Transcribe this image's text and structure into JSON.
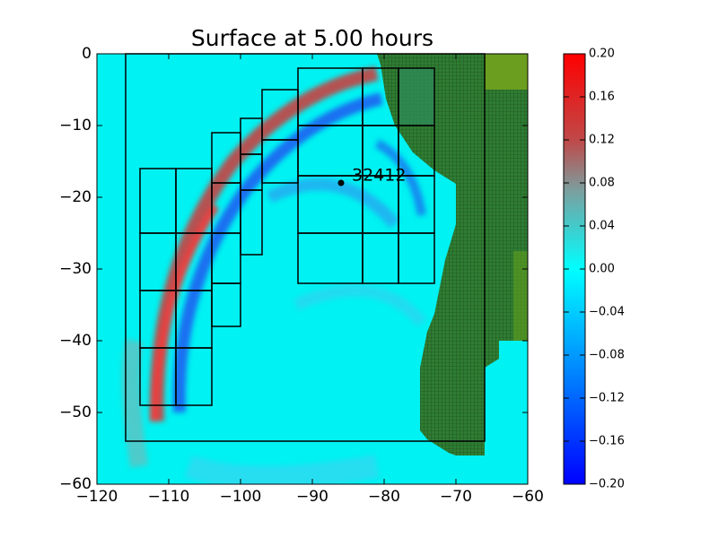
{
  "chart_data": {
    "type": "field",
    "title": "Surface at 5.00 hours",
    "xlim": [
      -120,
      -60
    ],
    "ylim": [
      -60,
      0
    ],
    "xticks": [
      {
        "value": -120,
        "label": "−120"
      },
      {
        "value": -110,
        "label": "−110"
      },
      {
        "value": -100,
        "label": "−100"
      },
      {
        "value": -90,
        "label": "−90"
      },
      {
        "value": -80,
        "label": "−80"
      },
      {
        "value": -70,
        "label": "−70"
      },
      {
        "value": -60,
        "label": "−60"
      }
    ],
    "yticks": [
      0,
      {
        "value": -10,
        "label": "−10"
      },
      {
        "value": -20,
        "label": "−20"
      },
      {
        "value": -30,
        "label": "−30"
      },
      {
        "value": -40,
        "label": "−40"
      },
      {
        "value": -50,
        "label": "−50"
      },
      {
        "value": -60,
        "label": "−60"
      }
    ],
    "clim": [
      -0.2,
      0.2
    ],
    "cticks": [
      {
        "value": 0.2,
        "label": "0.20"
      },
      {
        "value": 0.16,
        "label": "0.16"
      },
      {
        "value": 0.12,
        "label": "0.12"
      },
      {
        "value": 0.08,
        "label": "0.08"
      },
      {
        "value": 0.04,
        "label": "0.04"
      },
      {
        "value": 0.0,
        "label": "0.00"
      },
      {
        "value": -0.04,
        "label": "−0.04"
      },
      {
        "value": -0.08,
        "label": "−0.08"
      },
      {
        "value": -0.12,
        "label": "−0.12"
      },
      {
        "value": -0.16,
        "label": "−0.16"
      },
      {
        "value": -0.2,
        "label": "−0.20"
      }
    ],
    "gauge": {
      "label": "32412",
      "x": -86,
      "y": -18
    },
    "patches": [
      {
        "x": [
          -116,
          -66
        ],
        "y": [
          -54,
          0
        ]
      },
      {
        "x": [
          -114,
          -109
        ],
        "y": [
          -25,
          -16
        ]
      },
      {
        "x": [
          -109,
          -104
        ],
        "y": [
          -25,
          -16
        ]
      },
      {
        "x": [
          -114,
          -109
        ],
        "y": [
          -33,
          -25
        ]
      },
      {
        "x": [
          -109,
          -104
        ],
        "y": [
          -33,
          -25
        ]
      },
      {
        "x": [
          -114,
          -109
        ],
        "y": [
          -41,
          -33
        ]
      },
      {
        "x": [
          -109,
          -104
        ],
        "y": [
          -41,
          -33
        ]
      },
      {
        "x": [
          -114,
          -109
        ],
        "y": [
          -49,
          -41
        ]
      },
      {
        "x": [
          -109,
          -104
        ],
        "y": [
          -49,
          -41
        ]
      },
      {
        "x": [
          -104,
          -100
        ],
        "y": [
          -18,
          -11
        ]
      },
      {
        "x": [
          -104,
          -100
        ],
        "y": [
          -25,
          -18
        ]
      },
      {
        "x": [
          -104,
          -100
        ],
        "y": [
          -32,
          -25
        ]
      },
      {
        "x": [
          -104,
          -100
        ],
        "y": [
          -38,
          -32
        ]
      },
      {
        "x": [
          -100,
          -97
        ],
        "y": [
          -14,
          -9
        ]
      },
      {
        "x": [
          -100,
          -97
        ],
        "y": [
          -19,
          -14
        ]
      },
      {
        "x": [
          -100,
          -97
        ],
        "y": [
          -28,
          -19
        ]
      },
      {
        "x": [
          -97,
          -92
        ],
        "y": [
          -12,
          -5
        ]
      },
      {
        "x": [
          -97,
          -92
        ],
        "y": [
          -18,
          -12
        ]
      },
      {
        "x": [
          -92,
          -83
        ],
        "y": [
          -10,
          -2
        ]
      },
      {
        "x": [
          -83,
          -78
        ],
        "y": [
          -10,
          -2
        ]
      },
      {
        "x": [
          -78,
          -73
        ],
        "y": [
          -10,
          -2
        ]
      },
      {
        "x": [
          -92,
          -83
        ],
        "y": [
          -17,
          -10
        ]
      },
      {
        "x": [
          -83,
          -78
        ],
        "y": [
          -17,
          -10
        ]
      },
      {
        "x": [
          -78,
          -73
        ],
        "y": [
          -17,
          -10
        ]
      },
      {
        "x": [
          -92,
          -83
        ],
        "y": [
          -25,
          -17
        ]
      },
      {
        "x": [
          -83,
          -78
        ],
        "y": [
          -25,
          -17
        ]
      },
      {
        "x": [
          -78,
          -73
        ],
        "y": [
          -25,
          -17
        ]
      },
      {
        "x": [
          -92,
          -83
        ],
        "y": [
          -32,
          -25
        ]
      },
      {
        "x": [
          -83,
          -78
        ],
        "y": [
          -32,
          -25
        ]
      },
      {
        "x": [
          -78,
          -73
        ],
        "y": [
          -32,
          -25
        ]
      }
    ]
  }
}
